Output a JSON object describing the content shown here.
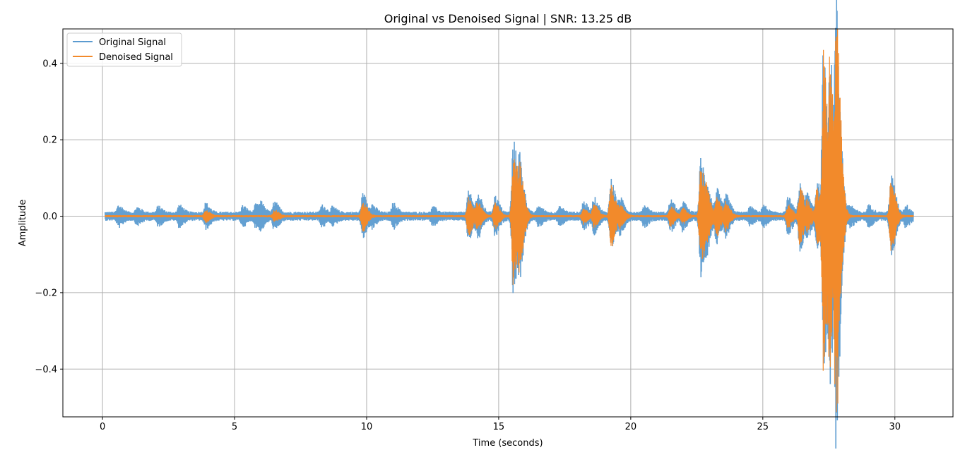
{
  "chart_data": {
    "type": "line",
    "title": "Original vs Denoised Signal | SNR: 13.25 dB",
    "xlabel": "Time (seconds)",
    "ylabel": "Amplitude",
    "xlim": [
      -1.5,
      32.2
    ],
    "ylim": [
      -0.525,
      0.49
    ],
    "xticks": [
      0,
      5,
      10,
      15,
      20,
      25,
      30
    ],
    "xtick_labels": [
      "0",
      "5",
      "10",
      "15",
      "20",
      "25",
      "30"
    ],
    "yticks": [
      -0.4,
      -0.2,
      0.0,
      0.2,
      0.4
    ],
    "ytick_labels": [
      "−0.4",
      "−0.2",
      "0.0",
      "0.2",
      "0.4"
    ],
    "grid": true,
    "legend_position": "top-left",
    "series": [
      {
        "name": "Original Signal",
        "color": "#5b9bd0",
        "x_range": [
          0.1,
          30.7
        ],
        "baseline_amplitude": 0.012,
        "peaks": [
          {
            "x": 0.6,
            "amplitude": 0.02
          },
          {
            "x": 1.3,
            "amplitude": 0.015
          },
          {
            "x": 2.1,
            "amplitude": 0.017
          },
          {
            "x": 2.9,
            "amplitude": 0.02
          },
          {
            "x": 3.9,
            "amplitude": 0.025
          },
          {
            "x": 5.3,
            "amplitude": 0.018
          },
          {
            "x": 5.8,
            "amplitude": 0.022
          },
          {
            "x": 6.0,
            "amplitude": 0.02
          },
          {
            "x": 6.5,
            "amplitude": 0.03
          },
          {
            "x": 8.3,
            "amplitude": 0.02
          },
          {
            "x": 8.7,
            "amplitude": 0.015
          },
          {
            "x": 9.85,
            "amplitude": 0.05
          },
          {
            "x": 10.2,
            "amplitude": 0.02
          },
          {
            "x": 11.0,
            "amplitude": 0.025
          },
          {
            "x": 12.5,
            "amplitude": 0.015
          },
          {
            "x": 13.85,
            "amplitude": 0.055
          },
          {
            "x": 14.2,
            "amplitude": 0.05
          },
          {
            "x": 14.85,
            "amplitude": 0.045
          },
          {
            "x": 15.55,
            "amplitude": 0.195
          },
          {
            "x": 15.8,
            "amplitude": 0.11
          },
          {
            "x": 16.5,
            "amplitude": 0.018
          },
          {
            "x": 17.3,
            "amplitude": 0.015
          },
          {
            "x": 18.2,
            "amplitude": 0.03
          },
          {
            "x": 18.6,
            "amplitude": 0.04
          },
          {
            "x": 19.25,
            "amplitude": 0.09
          },
          {
            "x": 19.6,
            "amplitude": 0.035
          },
          {
            "x": 20.5,
            "amplitude": 0.02
          },
          {
            "x": 21.5,
            "amplitude": 0.035
          },
          {
            "x": 21.95,
            "amplitude": 0.03
          },
          {
            "x": 22.65,
            "amplitude": 0.15
          },
          {
            "x": 22.9,
            "amplitude": 0.05
          },
          {
            "x": 23.25,
            "amplitude": 0.06
          },
          {
            "x": 23.6,
            "amplitude": 0.045
          },
          {
            "x": 24.5,
            "amplitude": 0.015
          },
          {
            "x": 25.0,
            "amplitude": 0.02
          },
          {
            "x": 25.95,
            "amplitude": 0.04
          },
          {
            "x": 26.4,
            "amplitude": 0.08
          },
          {
            "x": 26.7,
            "amplitude": 0.04
          },
          {
            "x": 27.05,
            "amplitude": 0.08
          },
          {
            "x": 27.3,
            "amplitude": 0.44
          },
          {
            "x": 27.55,
            "amplitude": 0.33
          },
          {
            "x": 27.78,
            "amplitude": 0.48
          },
          {
            "x": 28.3,
            "amplitude": 0.02
          },
          {
            "x": 29.0,
            "amplitude": 0.02
          },
          {
            "x": 29.85,
            "amplitude": 0.1
          },
          {
            "x": 30.4,
            "amplitude": 0.02
          }
        ]
      },
      {
        "name": "Denoised Signal",
        "color": "#f28a2b",
        "x_range": [
          0.1,
          30.7
        ],
        "baseline_amplitude": 0.003,
        "peaks": [
          {
            "x": 3.9,
            "amplitude": 0.015
          },
          {
            "x": 6.5,
            "amplitude": 0.015
          },
          {
            "x": 9.85,
            "amplitude": 0.04
          },
          {
            "x": 13.85,
            "amplitude": 0.05
          },
          {
            "x": 14.2,
            "amplitude": 0.035
          },
          {
            "x": 14.85,
            "amplitude": 0.035
          },
          {
            "x": 15.55,
            "amplitude": 0.18
          },
          {
            "x": 15.8,
            "amplitude": 0.1
          },
          {
            "x": 18.2,
            "amplitude": 0.02
          },
          {
            "x": 18.6,
            "amplitude": 0.03
          },
          {
            "x": 19.25,
            "amplitude": 0.085
          },
          {
            "x": 19.6,
            "amplitude": 0.025
          },
          {
            "x": 21.5,
            "amplitude": 0.025
          },
          {
            "x": 21.95,
            "amplitude": 0.02
          },
          {
            "x": 22.65,
            "amplitude": 0.14
          },
          {
            "x": 22.9,
            "amplitude": 0.04
          },
          {
            "x": 23.25,
            "amplitude": 0.05
          },
          {
            "x": 23.6,
            "amplitude": 0.035
          },
          {
            "x": 25.95,
            "amplitude": 0.03
          },
          {
            "x": 26.4,
            "amplitude": 0.075
          },
          {
            "x": 26.7,
            "amplitude": 0.03
          },
          {
            "x": 27.05,
            "amplitude": 0.07
          },
          {
            "x": 27.3,
            "amplitude": 0.42
          },
          {
            "x": 27.55,
            "amplitude": 0.32
          },
          {
            "x": 27.78,
            "amplitude": 0.47
          },
          {
            "x": 29.85,
            "amplitude": 0.095
          }
        ]
      }
    ]
  }
}
